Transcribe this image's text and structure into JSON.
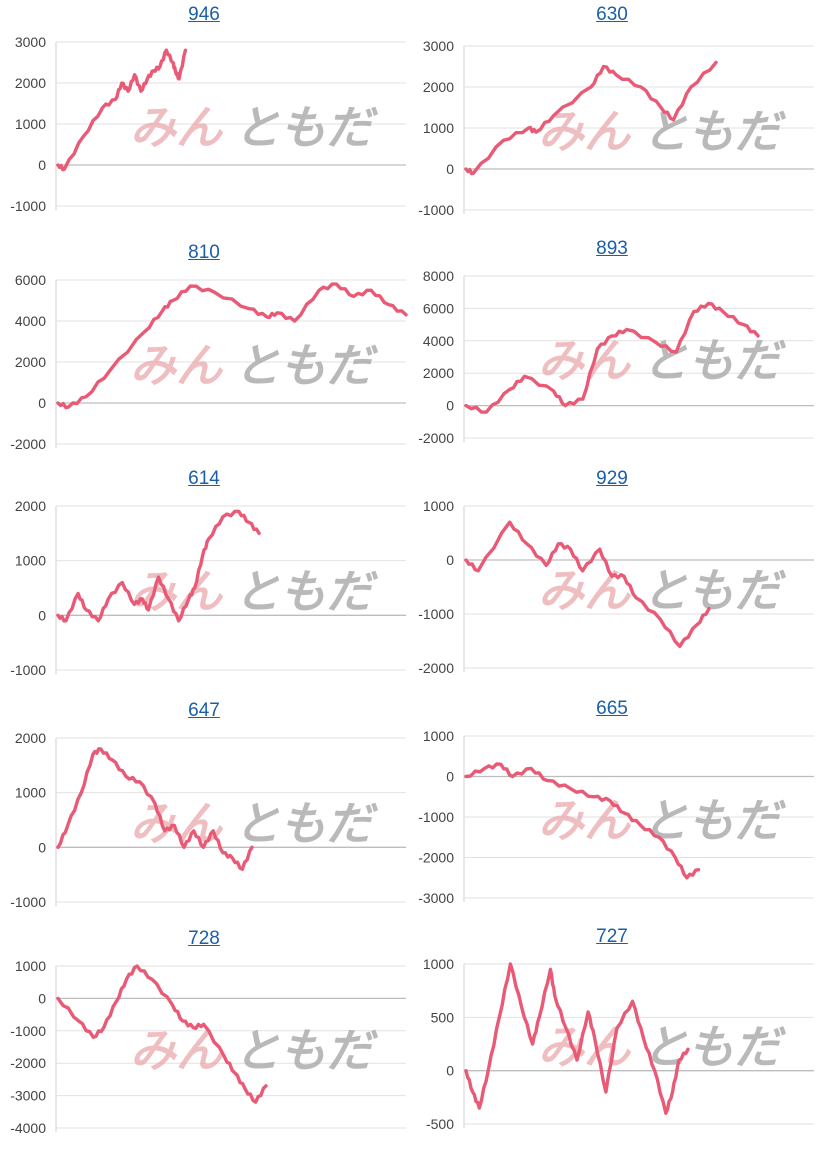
{
  "colors": {
    "line": "#e85a75",
    "title": "#1a5fa8"
  },
  "watermark": {
    "part1": "みん",
    "part2": "ともだ",
    "icon": "site-logo-watermark"
  },
  "chart_data": [
    {
      "type": "line",
      "title": "946",
      "yticks": [
        3000,
        2000,
        1000,
        0,
        -1000
      ],
      "ylim": [
        -1000,
        3000
      ],
      "x": [
        0,
        0.05,
        0.2,
        0.35,
        0.45,
        0.5,
        0.55,
        0.6,
        0.65,
        0.7,
        0.75,
        0.8,
        0.85,
        0.9,
        0.92,
        0.95,
        1.0
      ],
      "values": [
        0,
        -100,
        700,
        1400,
        1600,
        2000,
        1800,
        2200,
        1800,
        2100,
        2300,
        2400,
        2800,
        2500,
        2300,
        2100,
        2800
      ]
    },
    {
      "type": "line",
      "title": "630",
      "yticks": [
        3000,
        2000,
        1000,
        0,
        -1000
      ],
      "ylim": [
        -1000,
        3000
      ],
      "x": [
        0,
        0.03,
        0.15,
        0.25,
        0.28,
        0.35,
        0.5,
        0.55,
        0.6,
        0.7,
        0.78,
        0.83,
        0.9,
        1.0
      ],
      "values": [
        0,
        -100,
        700,
        1000,
        900,
        1300,
        2000,
        2500,
        2300,
        2000,
        1500,
        1200,
        2000,
        2600
      ]
    },
    {
      "type": "line",
      "title": "810",
      "yticks": [
        6000,
        4000,
        2000,
        0,
        -2000
      ],
      "ylim": [
        -2000,
        6000
      ],
      "x": [
        0,
        0.03,
        0.08,
        0.15,
        0.25,
        0.3,
        0.33,
        0.38,
        0.45,
        0.55,
        0.6,
        0.63,
        0.68,
        0.75,
        0.8,
        0.85,
        0.9,
        0.95,
        1.0
      ],
      "values": [
        0,
        -200,
        300,
        1600,
        3500,
        4500,
        5000,
        5700,
        5400,
        4600,
        4200,
        4400,
        4000,
        5500,
        5800,
        5200,
        5500,
        4800,
        4300
      ]
    },
    {
      "type": "line",
      "title": "893",
      "yticks": [
        8000,
        6000,
        4000,
        2000,
        0,
        -2000
      ],
      "ylim": [
        -2000,
        8000
      ],
      "x": [
        0,
        0.07,
        0.15,
        0.2,
        0.3,
        0.34,
        0.4,
        0.45,
        0.5,
        0.55,
        0.65,
        0.72,
        0.78,
        0.83,
        0.88,
        0.95,
        1.0
      ],
      "values": [
        0,
        -400,
        1000,
        1800,
        900,
        0,
        400,
        3500,
        4300,
        4700,
        3900,
        3300,
        5800,
        6300,
        5800,
        5000,
        4300
      ]
    },
    {
      "type": "line",
      "title": "614",
      "yticks": [
        2000,
        1000,
        0,
        -1000
      ],
      "ylim": [
        -1000,
        2000
      ],
      "x": [
        0,
        0.04,
        0.1,
        0.14,
        0.2,
        0.25,
        0.32,
        0.38,
        0.42,
        0.45,
        0.5,
        0.55,
        0.6,
        0.65,
        0.68,
        0.72,
        0.75,
        0.82,
        0.9,
        0.95,
        1.0
      ],
      "values": [
        0,
        -100,
        400,
        100,
        -100,
        300,
        600,
        200,
        300,
        100,
        700,
        300,
        -100,
        300,
        500,
        1100,
        1400,
        1800,
        1900,
        1700,
        1500
      ]
    },
    {
      "type": "line",
      "title": "929",
      "yticks": [
        1000,
        0,
        -1000,
        -2000
      ],
      "ylim": [
        -2000,
        1000
      ],
      "x": [
        0,
        0.05,
        0.18,
        0.25,
        0.33,
        0.38,
        0.43,
        0.48,
        0.55,
        0.6,
        0.65,
        0.7,
        0.8,
        0.88,
        0.95,
        1.0
      ],
      "values": [
        0,
        -200,
        700,
        300,
        -100,
        300,
        200,
        -200,
        200,
        -300,
        -300,
        -700,
        -1100,
        -1600,
        -1200,
        -900
      ]
    },
    {
      "type": "line",
      "title": "647",
      "yticks": [
        2000,
        1000,
        0,
        -1000
      ],
      "ylim": [
        -1000,
        2000
      ],
      "x": [
        0,
        0.05,
        0.12,
        0.18,
        0.22,
        0.28,
        0.35,
        0.42,
        0.5,
        0.55,
        0.6,
        0.65,
        0.7,
        0.75,
        0.8,
        0.85,
        0.9,
        0.95,
        1.0
      ],
      "values": [
        0,
        400,
        1000,
        1700,
        1800,
        1600,
        1300,
        1200,
        800,
        300,
        400,
        0,
        300,
        0,
        300,
        -100,
        -200,
        -400,
        0
      ]
    },
    {
      "type": "line",
      "title": "665",
      "yticks": [
        1000,
        0,
        -1000,
        -2000,
        -3000
      ],
      "ylim": [
        -3000,
        1000
      ],
      "x": [
        0,
        0.08,
        0.15,
        0.2,
        0.28,
        0.35,
        0.45,
        0.55,
        0.62,
        0.68,
        0.75,
        0.83,
        0.9,
        0.95,
        1.0
      ],
      "values": [
        0,
        200,
        300,
        0,
        200,
        -100,
        -300,
        -500,
        -600,
        -900,
        -1200,
        -1500,
        -2000,
        -2500,
        -2300
      ]
    },
    {
      "type": "line",
      "title": "728",
      "yticks": [
        1000,
        0,
        -1000,
        -2000,
        -3000,
        -4000
      ],
      "ylim": [
        -4000,
        1000
      ],
      "x": [
        0,
        0.1,
        0.17,
        0.22,
        0.28,
        0.33,
        0.38,
        0.45,
        0.55,
        0.6,
        0.65,
        0.7,
        0.8,
        0.85,
        0.9,
        0.95,
        1.0
      ],
      "values": [
        0,
        -700,
        -1200,
        -900,
        -100,
        600,
        1000,
        600,
        -200,
        -700,
        -900,
        -800,
        -1800,
        -2300,
        -2800,
        -3200,
        -2700
      ]
    },
    {
      "type": "line",
      "title": "727",
      "yticks": [
        1000,
        500,
        0,
        -500
      ],
      "ylim": [
        -500,
        1000
      ],
      "x": [
        0,
        0.03,
        0.06,
        0.1,
        0.15,
        0.2,
        0.25,
        0.3,
        0.33,
        0.38,
        0.4,
        0.45,
        0.5,
        0.55,
        0.58,
        0.63,
        0.68,
        0.75,
        0.8,
        0.85,
        0.9,
        0.93,
        0.96,
        1.0
      ],
      "values": [
        0,
        -200,
        -350,
        0,
        500,
        1000,
        600,
        250,
        500,
        950,
        700,
        400,
        100,
        550,
        300,
        -200,
        400,
        650,
        300,
        0,
        -400,
        -200,
        100,
        200
      ]
    }
  ]
}
